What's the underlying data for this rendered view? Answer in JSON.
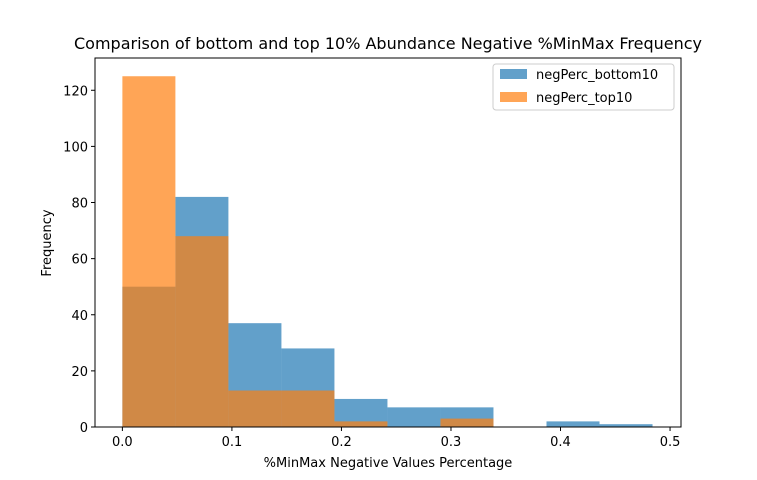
{
  "chart_data": {
    "type": "bar",
    "title": "Comparison of bottom and top 10% Abundance Negative %MinMax Frequency",
    "xlabel": "%MinMax Negative Values Percentage",
    "ylabel": "Frequency",
    "xlim": [
      -0.025,
      0.51
    ],
    "ylim": [
      0,
      131.5
    ],
    "xticks": [
      0.0,
      0.1,
      0.2,
      0.3,
      0.4,
      0.5
    ],
    "xtick_labels": [
      "0.0",
      "0.1",
      "0.2",
      "0.3",
      "0.4",
      "0.5"
    ],
    "yticks": [
      0,
      20,
      40,
      60,
      80,
      100,
      120
    ],
    "ytick_labels": [
      "0",
      "20",
      "40",
      "60",
      "80",
      "100",
      "120"
    ],
    "grid": false,
    "legend_position": "top-right",
    "series": [
      {
        "name": "negPerc_bottom10",
        "color": "#1f77b4",
        "opacity": 0.7,
        "bin_edges": [
          0.0,
          0.0484,
          0.0968,
          0.1452,
          0.1936,
          0.242,
          0.2904,
          0.3388,
          0.3872,
          0.4356,
          0.484
        ],
        "values": [
          50,
          82,
          37,
          28,
          10,
          7,
          7,
          0,
          2,
          1
        ]
      },
      {
        "name": "negPerc_top10",
        "color": "#ff7f0e",
        "opacity": 0.7,
        "bin_edges": [
          0.0,
          0.0484,
          0.0968,
          0.1452,
          0.1936,
          0.242,
          0.2904,
          0.3388
        ],
        "values": [
          125,
          68,
          13,
          13,
          2,
          0,
          3
        ]
      }
    ]
  }
}
